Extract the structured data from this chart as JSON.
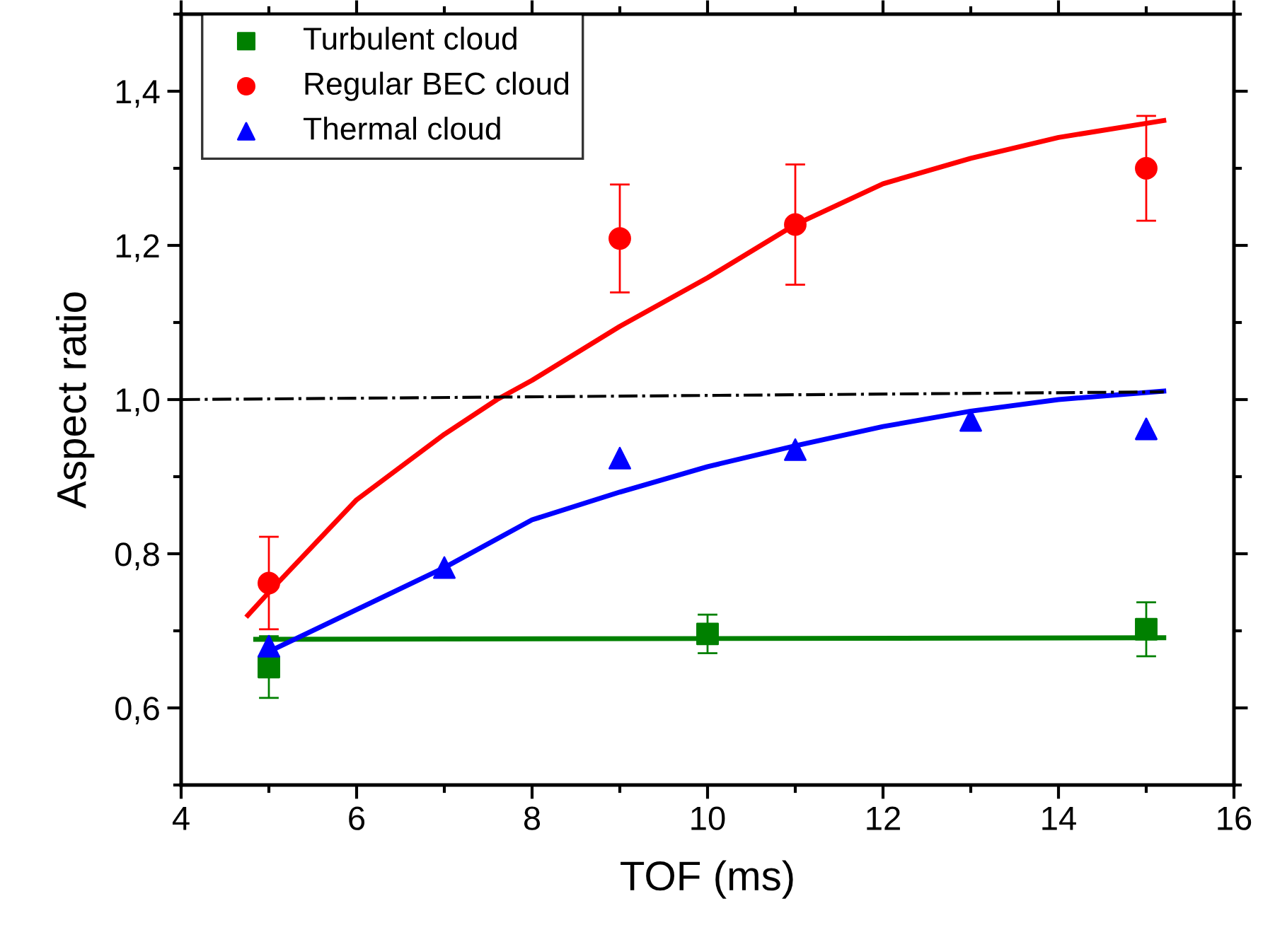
{
  "chart_data": {
    "type": "scatter",
    "xlabel": "TOF (ms)",
    "ylabel": "Aspect ratio",
    "xlim": [
      4,
      16
    ],
    "ylim": [
      0.5,
      1.5
    ],
    "xticks": [
      4,
      6,
      8,
      10,
      12,
      14,
      16
    ],
    "yticks": [
      {
        "value": 0.6,
        "label": "0,6"
      },
      {
        "value": 0.8,
        "label": "0,8"
      },
      {
        "value": 1.0,
        "label": "1,0"
      },
      {
        "value": 1.2,
        "label": "1,2"
      },
      {
        "value": 1.4,
        "label": "1,4"
      }
    ],
    "grid": false,
    "legend": "top left",
    "series": [
      {
        "name": "Turbulent cloud",
        "marker": "square",
        "color": "#008000",
        "x": [
          5,
          10,
          15
        ],
        "values": [
          0.653,
          0.696,
          0.702
        ],
        "errors": [
          0.04,
          0.025,
          0.035
        ]
      },
      {
        "name": "Regular BEC cloud",
        "marker": "circle",
        "color": "#ff0000",
        "x": [
          5,
          9,
          11,
          15
        ],
        "values": [
          0.762,
          1.209,
          1.227,
          1.3
        ],
        "errors": [
          0.06,
          0.07,
          0.078,
          0.068
        ]
      },
      {
        "name": "Thermal cloud",
        "marker": "triangle",
        "color": "#0000ff",
        "x": [
          5,
          7,
          9,
          11,
          13,
          15
        ],
        "values": [
          0.68,
          0.782,
          0.924,
          0.935,
          0.973,
          0.962
        ]
      },
      {
        "type": "line",
        "color": "#008000",
        "x": [
          4.85,
          15.2
        ],
        "values": [
          0.689,
          0.691
        ]
      },
      {
        "type": "line",
        "color": "#ff0000",
        "x": [
          4.76,
          5,
          6,
          7,
          7.6,
          8,
          9,
          10,
          11,
          12,
          13,
          14,
          15.2
        ],
        "values": [
          0.72,
          0.75,
          0.87,
          0.955,
          1.0,
          1.025,
          1.095,
          1.158,
          1.227,
          1.28,
          1.313,
          1.34,
          1.362
        ]
      },
      {
        "type": "line",
        "color": "#0000ff",
        "x": [
          5,
          7,
          8,
          9,
          10,
          11,
          12,
          13,
          14,
          15.2
        ],
        "values": [
          0.673,
          0.782,
          0.844,
          0.88,
          0.913,
          0.94,
          0.965,
          0.985,
          1.0,
          1.011
        ]
      },
      {
        "type": "line",
        "color": "#000000",
        "line_style": "dashdot",
        "x": [
          4,
          15.2
        ],
        "values": [
          1.0,
          1.01
        ]
      }
    ]
  }
}
